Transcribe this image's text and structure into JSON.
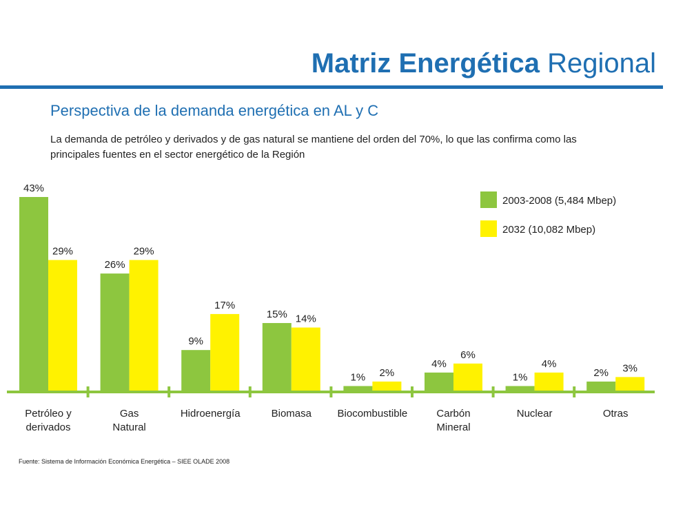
{
  "header": {
    "title_bold": "Matriz Energética",
    "title_light": "Regional"
  },
  "subtitle": "Perspectiva de la demanda energética en AL y C",
  "description": "La demanda de petróleo y derivados y de gas natural se mantiene del orden del 70%, lo que las confirma como las principales fuentes en el sector energético de la Región",
  "source": "Fuente: Sistema de Información Económica Energética – SIEE OLADE 2008",
  "colors": {
    "accent": "#1f6fb2",
    "series1": "#8dc63f",
    "series2": "#fff200",
    "axis": "#8dc63f"
  },
  "chart_data": {
    "type": "bar",
    "categories": [
      [
        "Petróleo y",
        "derivados"
      ],
      [
        "Gas",
        "Natural"
      ],
      [
        "Hidroenergía"
      ],
      [
        "Biomasa"
      ],
      [
        "Biocombustible"
      ],
      [
        "Carbón",
        "Mineral"
      ],
      [
        "Nuclear"
      ],
      [
        "Otras"
      ]
    ],
    "series": [
      {
        "name": "2003-2008 (5,484 Mbep)",
        "color": "#8dc63f",
        "values": [
          43,
          26,
          9,
          15,
          1,
          4,
          1,
          2
        ]
      },
      {
        "name": "2032 (10,082 Mbep)",
        "color": "#fff200",
        "values": [
          29,
          29,
          17,
          14,
          2,
          6,
          4,
          3
        ]
      }
    ],
    "value_suffix": "%",
    "ylim": [
      0,
      43
    ],
    "grid": false,
    "legend_position": "top-right"
  }
}
